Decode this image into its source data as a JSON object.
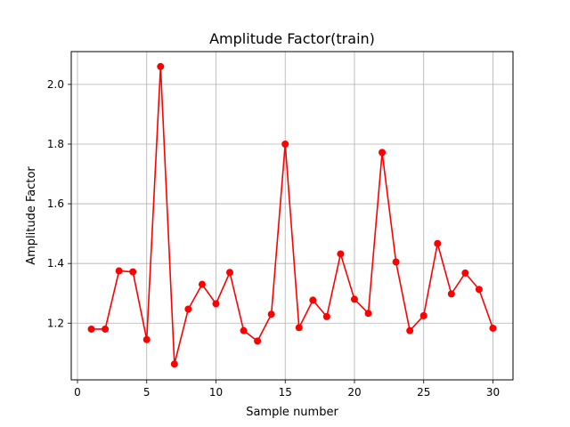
{
  "chart_data": {
    "type": "line",
    "title": "Amplitude Factor(train)",
    "xlabel": "Sample number",
    "ylabel": "Amplitude Factor",
    "xlim": [
      -0.45,
      31.45
    ],
    "ylim": [
      1.01,
      2.11
    ],
    "xticks": [
      0,
      5,
      10,
      15,
      20,
      25,
      30
    ],
    "yticks": [
      1.2,
      1.4,
      1.6,
      1.8,
      2.0
    ],
    "grid": true,
    "marker": "circle",
    "color": "#ff0000",
    "x": [
      1,
      2,
      3,
      4,
      5,
      6,
      7,
      8,
      9,
      10,
      11,
      12,
      13,
      14,
      15,
      16,
      17,
      18,
      19,
      20,
      21,
      22,
      23,
      24,
      25,
      26,
      27,
      28,
      29,
      30
    ],
    "y": [
      1.18,
      1.18,
      1.375,
      1.372,
      1.145,
      2.06,
      1.063,
      1.247,
      1.33,
      1.265,
      1.37,
      1.175,
      1.14,
      1.23,
      1.8,
      1.185,
      1.277,
      1.222,
      1.432,
      1.28,
      1.233,
      1.772,
      1.405,
      1.175,
      1.225,
      1.467,
      1.298,
      1.368,
      1.313,
      1.183
    ]
  }
}
